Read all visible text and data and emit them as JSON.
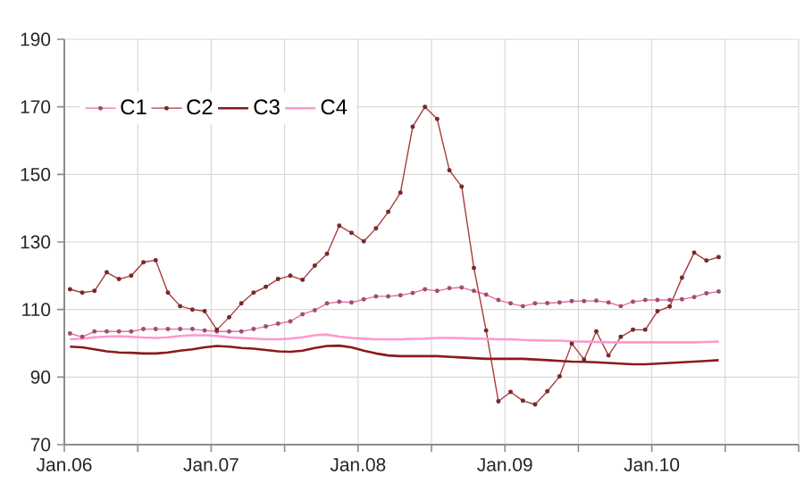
{
  "chart_data": {
    "type": "line",
    "x": [
      "2006-01-15",
      "2006-02-15",
      "2006-03-15",
      "2006-04-15",
      "2006-05-15",
      "2006-06-15",
      "2006-07-15",
      "2006-08-15",
      "2006-09-15",
      "2006-10-15",
      "2006-11-15",
      "2006-12-15",
      "2007-01-15",
      "2007-02-15",
      "2007-03-15",
      "2007-04-15",
      "2007-05-15",
      "2007-06-15",
      "2007-07-15",
      "2007-08-15",
      "2007-09-15",
      "2007-10-15",
      "2007-11-15",
      "2007-12-15",
      "2008-01-15",
      "2008-02-15",
      "2008-03-15",
      "2008-04-15",
      "2008-05-15",
      "2008-06-15",
      "2008-07-15",
      "2008-08-15",
      "2008-09-15",
      "2008-10-15",
      "2008-11-15",
      "2008-12-15",
      "2009-01-15",
      "2009-02-15",
      "2009-03-15",
      "2009-04-15",
      "2009-05-15",
      "2009-06-15",
      "2009-07-15",
      "2009-08-15",
      "2009-09-15",
      "2009-10-15",
      "2009-11-15",
      "2009-12-15",
      "2010-01-15",
      "2010-02-15",
      "2010-03-15",
      "2010-04-15",
      "2010-05-15",
      "2010-06-15"
    ],
    "series": [
      {
        "name": "C1",
        "color": "#e36fa8",
        "marker": "circle",
        "values": [
          102.9,
          101.9,
          103.5,
          103.5,
          103.5,
          103.5,
          104.2,
          104.2,
          104.2,
          104.2,
          104.2,
          103.8,
          103.5,
          103.5,
          103.5,
          104.2,
          105,
          105.8,
          106.5,
          108.6,
          109.8,
          111.8,
          112.3,
          112.1,
          113,
          113.9,
          113.9,
          114.2,
          114.9,
          116,
          115.5,
          116.3,
          116.5,
          115.5,
          114.4,
          112.8,
          111.8,
          111,
          111.8,
          111.9,
          112.1,
          112.5,
          112.5,
          112.6,
          112.1,
          111,
          112.3,
          112.8,
          112.8,
          112.8,
          113,
          113.7,
          114.8,
          115.3
        ]
      },
      {
        "name": "C2",
        "color": "#a83c3c",
        "marker": "circle",
        "values": [
          116,
          115,
          115.5,
          121,
          119,
          120,
          124,
          124.6,
          115,
          111,
          110,
          109.5,
          104,
          107.7,
          111.8,
          115,
          116.7,
          119,
          120,
          118.8,
          123,
          126.5,
          134.8,
          132.7,
          130.2,
          134,
          138.9,
          144.6,
          164.1,
          170,
          166.4,
          151.2,
          146.4,
          122.3,
          103.8,
          82.8,
          85.6,
          83,
          81.9,
          85.8,
          90.2,
          99.9,
          95.2,
          103.5,
          96.4,
          101.9,
          104,
          104,
          109.5,
          110.9,
          119.4,
          126.8,
          124.5,
          125.5
        ]
      },
      {
        "name": "C3",
        "color": "#8b1a1a",
        "marker": "none",
        "values": [
          99.0,
          98.8,
          98.2,
          97.6,
          97.3,
          97.2,
          97.0,
          97.0,
          97.3,
          97.8,
          98.2,
          98.8,
          99.2,
          99.0,
          98.6,
          98.4,
          98.0,
          97.6,
          97.5,
          97.8,
          98.6,
          99.2,
          99.3,
          98.8,
          97.8,
          97.0,
          96.4,
          96.2,
          96.2,
          96.2,
          96.2,
          96.0,
          95.8,
          95.6,
          95.4,
          95.4,
          95.4,
          95.4,
          95.2,
          95.0,
          94.8,
          94.6,
          94.5,
          94.4,
          94.2,
          94.0,
          93.8,
          93.8,
          94.0,
          94.2,
          94.4,
          94.6,
          94.8,
          95.0
        ]
      },
      {
        "name": "C4",
        "color": "#ff99cc",
        "marker": "none",
        "values": [
          101.2,
          101.4,
          101.8,
          102.0,
          102.1,
          101.9,
          101.7,
          101.6,
          101.8,
          102.2,
          102.4,
          102.4,
          102.2,
          101.8,
          101.6,
          101.4,
          101.2,
          101.2,
          101.4,
          101.8,
          102.4,
          102.6,
          102.0,
          101.6,
          101.4,
          101.2,
          101.2,
          101.2,
          101.3,
          101.4,
          101.6,
          101.6,
          101.5,
          101.4,
          101.3,
          101.2,
          101.2,
          101.0,
          100.9,
          100.8,
          100.8,
          100.6,
          100.5,
          100.4,
          100.3,
          100.3,
          100.3,
          100.3,
          100.3,
          100.3,
          100.3,
          100.3,
          100.4,
          100.5
        ]
      }
    ],
    "xlim": [
      "2006-01",
      "2011-01"
    ],
    "xticks": [
      {
        "value": "2006-01",
        "label": "Jan.06"
      },
      {
        "value": "2006-07",
        "label": null
      },
      {
        "value": "2007-01",
        "label": "Jan.07"
      },
      {
        "value": "2007-07",
        "label": null
      },
      {
        "value": "2008-01",
        "label": "Jan.08"
      },
      {
        "value": "2008-07",
        "label": null
      },
      {
        "value": "2009-01",
        "label": "Jan.09"
      },
      {
        "value": "2009-07",
        "label": null
      },
      {
        "value": "2010-01",
        "label": "Jan.10"
      },
      {
        "value": "2010-07",
        "label": null
      },
      {
        "value": "2011-01",
        "label": null
      }
    ],
    "ylim": [
      70,
      190
    ],
    "yticks": [
      70,
      90,
      110,
      130,
      150,
      170,
      190
    ],
    "grid": true,
    "legend": "top left"
  }
}
